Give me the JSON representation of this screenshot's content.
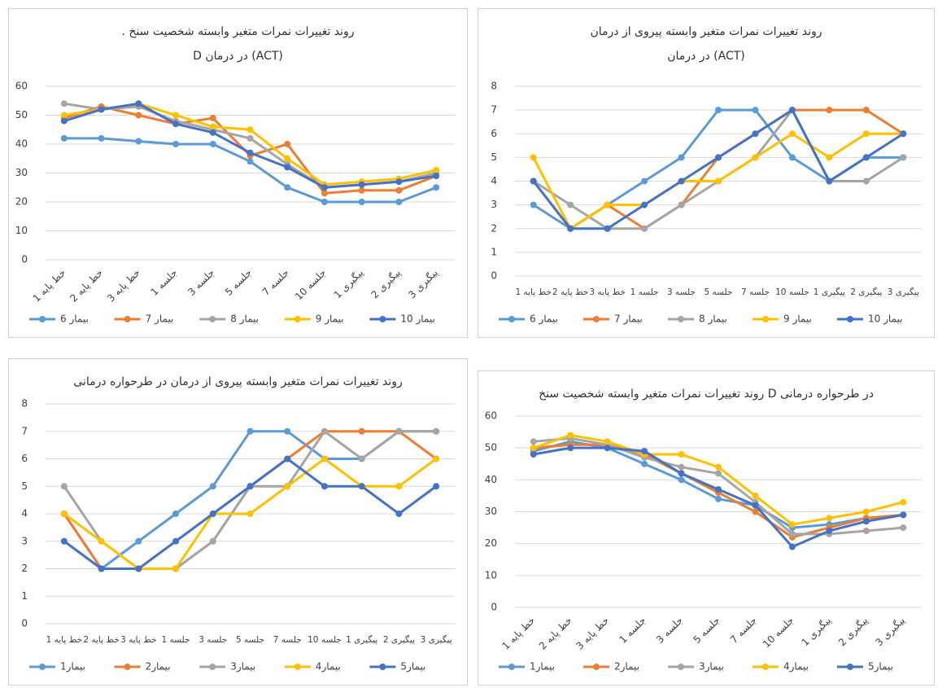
{
  "chart_data": [
    {
      "type": "line",
      "title": ". روند تغییرات نمرات متغیر وابسته شخصیت سنخ",
      "subtitle": "D در  درمان (ACT)",
      "categories": [
        "خط پایه 1",
        "خط پایه 2",
        "خط پایه 3",
        "جلسه 1",
        "جلسه 3",
        "جلسه 5",
        "جلسه 7",
        "جلسه 10",
        "پیگیری 1",
        "پیگیری 2",
        "پیگیری 3"
      ],
      "x_label_angle": -45,
      "ylim": [
        0,
        60
      ],
      "yticks": [
        0,
        10,
        20,
        30,
        40,
        50,
        60
      ],
      "grid": true,
      "series": [
        {
          "name": "بیمار 6",
          "color": "#5b9bd5",
          "values": [
            42,
            42,
            41,
            40,
            40,
            34,
            25,
            20,
            20,
            20,
            25
          ]
        },
        {
          "name": "بیمار 7",
          "color": "#ed7d31",
          "values": [
            49,
            53,
            50,
            47,
            49,
            36,
            40,
            23,
            24,
            24,
            29
          ]
        },
        {
          "name": "بیمار 8",
          "color": "#a5a5a5",
          "values": [
            54,
            52,
            53,
            48,
            45,
            42,
            33,
            25,
            26,
            27,
            30
          ]
        },
        {
          "name": "بیمار 9",
          "color": "#ffc000",
          "values": [
            50,
            52,
            54,
            50,
            46,
            45,
            35,
            26,
            27,
            28,
            31
          ]
        },
        {
          "name": "بیمار 10",
          "color": "#4472c4",
          "values": [
            48,
            52,
            54,
            47,
            44,
            37,
            32,
            25,
            26,
            27,
            29
          ]
        }
      ]
    },
    {
      "type": "line",
      "title": "روند تغییرات نمرات متغیر وابسته پیروی از درمان",
      "subtitle": "در درمان (ACT)",
      "categories": [
        "خط پایه 1",
        "خط پایه 2",
        "خط پایه 3",
        "جلسه 1",
        "جلسه 3",
        "جلسه 5",
        "جلسه 7",
        "جلسه 10",
        "پیگیری 1",
        "پیگیری 2",
        "پیگیری 3"
      ],
      "x_label_angle": 0,
      "ylim": [
        0,
        8
      ],
      "yticks": [
        0,
        1,
        2,
        3,
        4,
        5,
        6,
        7,
        8
      ],
      "grid": true,
      "series": [
        {
          "name": "بیمار 6",
          "color": "#5b9bd5",
          "values": [
            3,
            2,
            3,
            4,
            5,
            7,
            7,
            5,
            4,
            5,
            5
          ]
        },
        {
          "name": "بیمار 7",
          "color": "#ed7d31",
          "values": [
            4,
            2,
            3,
            2,
            3,
            5,
            6,
            7,
            7,
            7,
            6
          ]
        },
        {
          "name": "بیمار 8",
          "color": "#a5a5a5",
          "values": [
            4,
            3,
            2,
            2,
            3,
            4,
            5,
            7,
            4,
            4,
            5
          ]
        },
        {
          "name": "بیمار 9",
          "color": "#ffc000",
          "values": [
            5,
            2,
            3,
            3,
            4,
            4,
            5,
            6,
            5,
            6,
            6
          ]
        },
        {
          "name": "بیمار 10",
          "color": "#4472c4",
          "values": [
            4,
            2,
            2,
            3,
            4,
            5,
            6,
            7,
            4,
            5,
            6
          ]
        }
      ]
    },
    {
      "type": "line",
      "title": "روند تغییرات نمرات متغیر وابسته پیروی از درمان در طرحواره درمانی",
      "categories": [
        "خط پایه 1",
        "خط پایه 2",
        "خط پایه 3",
        "جلسه 1",
        "جلسه 3",
        "جلسه 5",
        "جلسه 7",
        "جلسه 10",
        "پیگیری 1",
        "پیگیری 2",
        "پیگیری 3"
      ],
      "x_label_angle": 0,
      "ylim": [
        0,
        8
      ],
      "yticks": [
        0,
        1,
        2,
        3,
        4,
        5,
        6,
        7,
        8
      ],
      "grid": true,
      "series": [
        {
          "name": "بیمار1",
          "color": "#5b9bd5",
          "values": [
            4,
            2,
            3,
            4,
            5,
            7,
            7,
            6,
            6,
            7,
            7
          ]
        },
        {
          "name": "بیمار2",
          "color": "#ed7d31",
          "values": [
            4,
            2,
            2,
            2,
            3,
            5,
            6,
            7,
            7,
            7,
            6
          ]
        },
        {
          "name": "بیمار3",
          "color": "#a5a5a5",
          "values": [
            5,
            3,
            2,
            2,
            3,
            5,
            5,
            7,
            6,
            7,
            7
          ]
        },
        {
          "name": "بیمار4",
          "color": "#ffc000",
          "values": [
            4,
            3,
            2,
            2,
            4,
            4,
            5,
            6,
            5,
            5,
            6
          ]
        },
        {
          "name": "بیمار5",
          "color": "#4472c4",
          "values": [
            3,
            2,
            2,
            3,
            4,
            5,
            6,
            5,
            5,
            4,
            5
          ]
        }
      ]
    },
    {
      "type": "line",
      "title": "روند تغییرات نمرات  متغیر وابسته شخصیت سنخ D در طرحواره درمانی",
      "categories": [
        "خط پایه 1",
        "خط پایه 2",
        "خط پایه 3",
        "جلسه 1",
        "جلسه 3",
        "جلسه 5",
        "جلسه 7",
        "جلسه 10",
        "پیگیری 1",
        "پیگیری 2",
        "پیگیری 3"
      ],
      "x_label_angle": -45,
      "ylim": [
        0,
        60
      ],
      "yticks": [
        0,
        10,
        20,
        30,
        40,
        50,
        60
      ],
      "grid": true,
      "series": [
        {
          "name": "بیمار1",
          "color": "#5b9bd5",
          "values": [
            49,
            52,
            50,
            45,
            40,
            34,
            32,
            25,
            26,
            28,
            29
          ]
        },
        {
          "name": "بیمار2",
          "color": "#ed7d31",
          "values": [
            50,
            51,
            51,
            48,
            42,
            36,
            30,
            22,
            25,
            28,
            29
          ]
        },
        {
          "name": "بیمار3",
          "color": "#a5a5a5",
          "values": [
            52,
            53,
            51,
            47,
            44,
            42,
            33,
            23,
            23,
            24,
            25
          ]
        },
        {
          "name": "بیمار4",
          "color": "#ffc000",
          "values": [
            50,
            54,
            52,
            48,
            48,
            44,
            35,
            26,
            28,
            30,
            33
          ]
        },
        {
          "name": "بیمار5",
          "color": "#4472c4",
          "values": [
            48,
            50,
            50,
            49,
            42,
            37,
            32,
            19,
            24,
            27,
            29
          ]
        }
      ]
    }
  ]
}
